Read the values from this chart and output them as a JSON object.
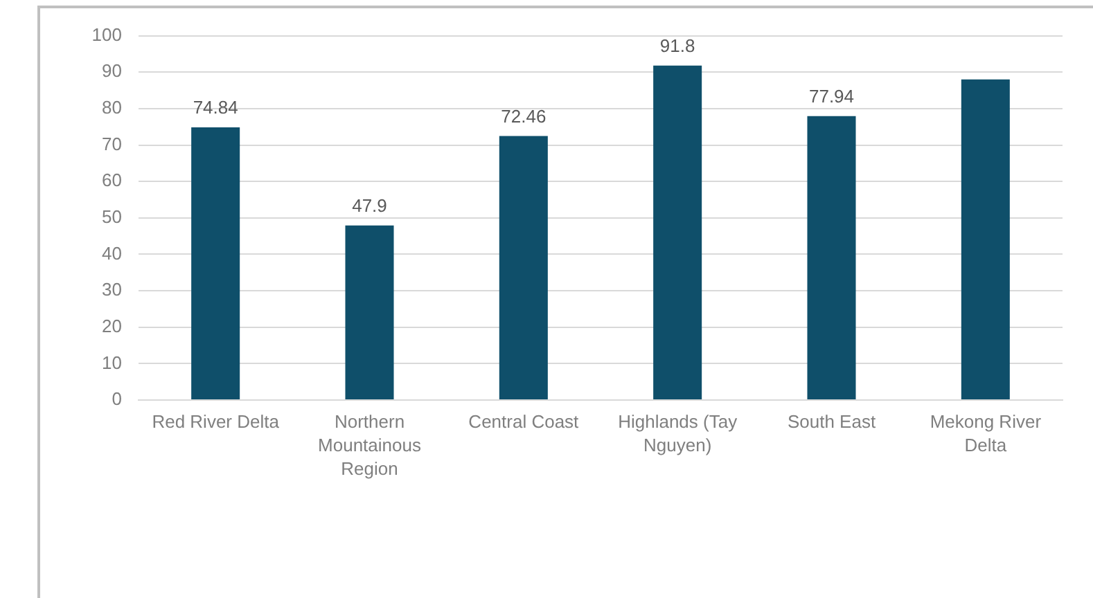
{
  "chart_data": {
    "type": "bar",
    "categories": [
      "Red River Delta",
      "Northern Mountainous Region",
      "Central Coast",
      "Highlands (Tay Nguyen)",
      "South East",
      "Mekong River Delta"
    ],
    "values": [
      74.84,
      47.9,
      72.46,
      91.8,
      77.94,
      88
    ],
    "value_labels": [
      "74.84",
      "47.9",
      "72.46",
      "91.8",
      "77.94",
      null
    ],
    "color": "#0f4f6a",
    "ylim": [
      0,
      100
    ],
    "yticks": [
      0,
      10,
      20,
      30,
      40,
      50,
      60,
      70,
      80,
      90,
      100
    ],
    "grid": "y"
  }
}
